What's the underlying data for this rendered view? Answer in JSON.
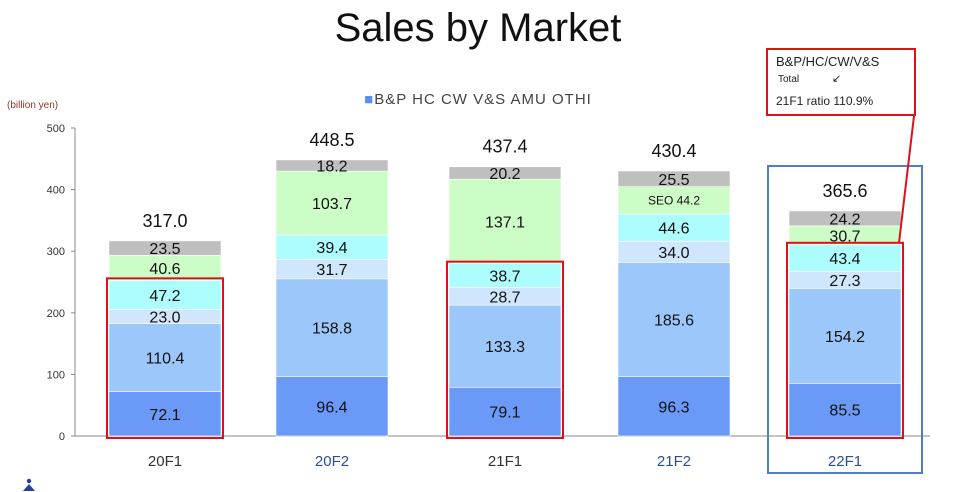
{
  "title": "Sales by Market",
  "callout": {
    "line1": "B&P/HC/CW/V&S",
    "line2": "Total",
    "arrow": "↙",
    "line3": "21F1 ratio 110.9%"
  },
  "colors": {
    "BP": "#6a99f7",
    "HC": "#9cc7fb",
    "CW": "#cfe6fc",
    "VS": "#aefdfe",
    "AMU": "#cdfdc6",
    "OTH": "#bfbfbf",
    "highlight": "#e0101a",
    "frame": "#4f7fbf"
  },
  "chart_data": {
    "type": "bar",
    "stacked": true,
    "ylabel": "(billion yen)",
    "ylim": [
      0,
      500
    ],
    "yticks": [
      0,
      100,
      200,
      300,
      400,
      500
    ],
    "legend_text": "B&P HC CW V&S AMU OTHI",
    "legend_position": "top",
    "categories": [
      "20F1",
      "20F2",
      "21F1",
      "21F2",
      "22F1"
    ],
    "totals": [
      "317.0",
      "448.5",
      "437.4",
      "430.4",
      "365.6"
    ],
    "series": [
      {
        "key": "BP",
        "values": [
          72.1,
          96.4,
          79.1,
          96.3,
          85.5
        ],
        "labels": [
          "72.1",
          "96.4",
          "79.1",
          "96.3",
          "85.5"
        ]
      },
      {
        "key": "HC",
        "values": [
          110.4,
          158.8,
          133.3,
          185.6,
          154.2
        ],
        "labels": [
          "110.4",
          "158.8",
          "133.3",
          "185.6",
          "154.2"
        ]
      },
      {
        "key": "CW",
        "values": [
          23.0,
          31.7,
          28.7,
          34.0,
          27.3
        ],
        "labels": [
          "23.0",
          "31.7",
          "28.7",
          "34.0",
          "27.3"
        ]
      },
      {
        "key": "VS",
        "values": [
          47.2,
          39.4,
          38.7,
          44.6,
          43.4
        ],
        "labels": [
          "47.2",
          "39.4",
          "38.7",
          "44.6",
          "43.4"
        ]
      },
      {
        "key": "AMU",
        "values": [
          40.6,
          103.7,
          137.1,
          44.2,
          30.7
        ],
        "labels": [
          "40.6",
          "103.7",
          "137.1",
          "SEO 44.2",
          "30.7"
        ]
      },
      {
        "key": "OTH",
        "values": [
          23.5,
          18.2,
          20.2,
          25.5,
          24.2
        ],
        "labels": [
          "23.5",
          "18.2",
          "20.2",
          "25.5",
          "24.2"
        ]
      }
    ],
    "highlighted_categories": [
      "20F1",
      "21F1",
      "22F1"
    ],
    "framed_category": "22F1",
    "grid": false
  }
}
